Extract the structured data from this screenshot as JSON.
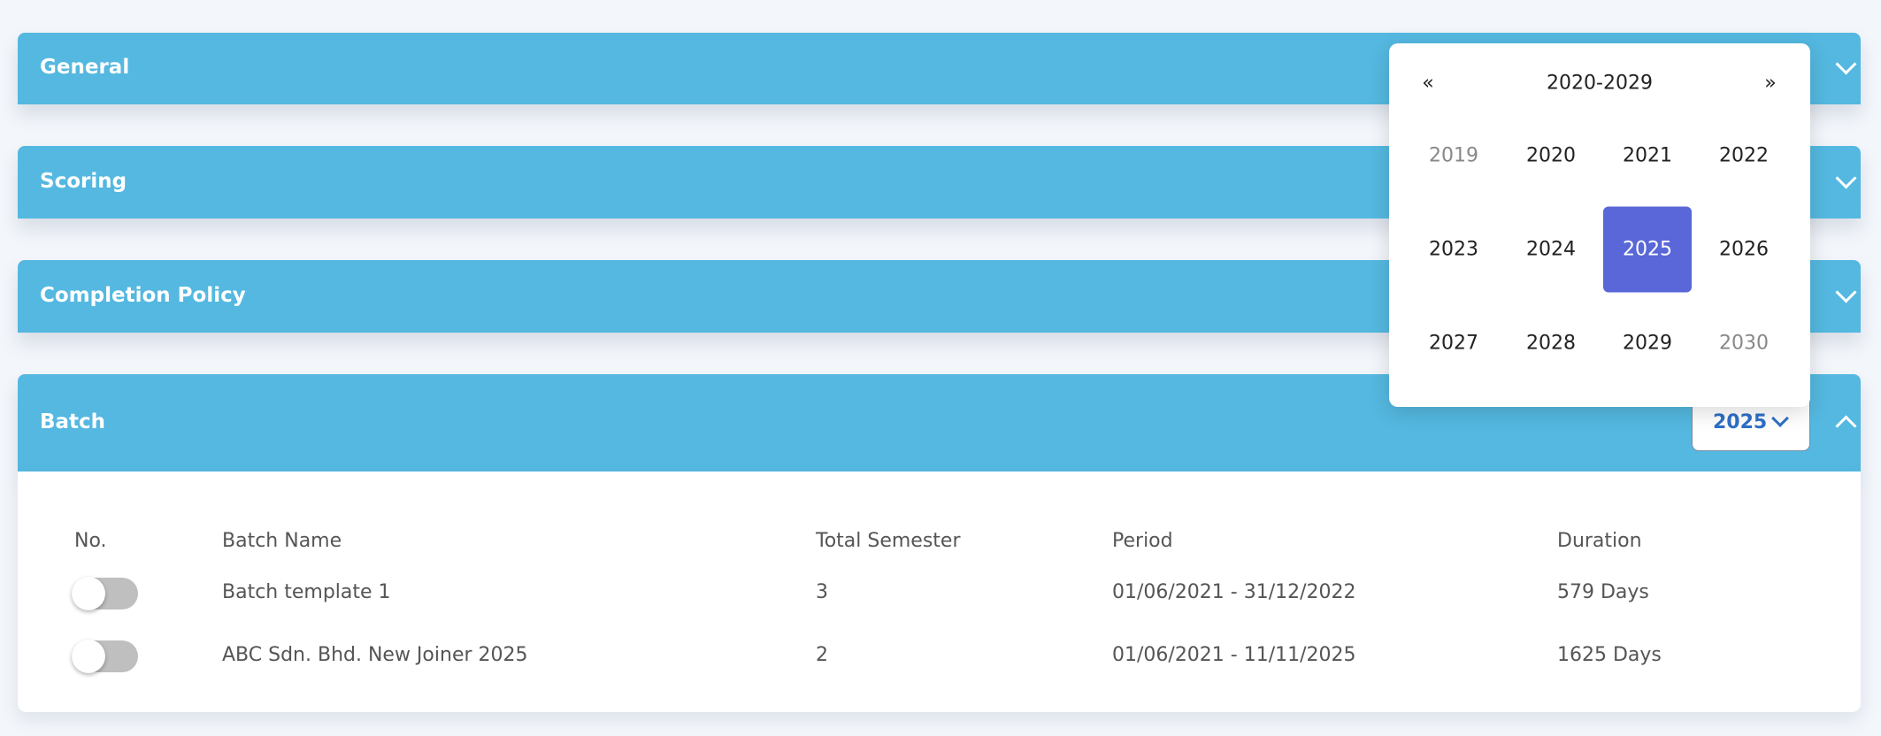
{
  "panels": [
    {
      "title": "General"
    },
    {
      "title": "Scoring"
    },
    {
      "title": "Completion Policy"
    },
    {
      "title": "Batch"
    }
  ],
  "year_picker": {
    "prev": "«",
    "range": "2020-2029",
    "next": "»",
    "years": [
      {
        "label": "2019",
        "muted": true
      },
      {
        "label": "2020"
      },
      {
        "label": "2021"
      },
      {
        "label": "2022"
      },
      {
        "label": "2023"
      },
      {
        "label": "2024"
      },
      {
        "label": "2025",
        "selected": true
      },
      {
        "label": "2026"
      },
      {
        "label": "2027"
      },
      {
        "label": "2028"
      },
      {
        "label": "2029"
      },
      {
        "label": "2030",
        "muted": true
      }
    ]
  },
  "batch_year": "2025",
  "table": {
    "headers": [
      "No.",
      "Batch Name",
      "Total Semester",
      "Period",
      "Duration"
    ],
    "rows": [
      [
        "Batch template 1",
        "3",
        "01/06/2021 - 31/12/2022",
        "579 Days"
      ],
      [
        "ABC Sdn. Bhd. New Joiner 2025",
        "2",
        "01/06/2021 - 11/11/2025",
        "1625 Days"
      ]
    ]
  }
}
